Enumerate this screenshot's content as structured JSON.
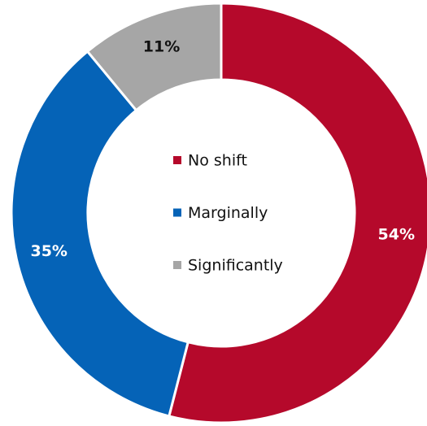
{
  "chart_data": {
    "type": "donut",
    "categories": [
      "No shift",
      "Marginally",
      "Significantly"
    ],
    "values": [
      54,
      35,
      11
    ],
    "value_labels": [
      "54%",
      "35%",
      "11%"
    ],
    "colors": [
      "#b5092b",
      "#0563b7",
      "#a6a6a6"
    ],
    "label_colors": [
      "#ffffff",
      "#ffffff",
      "#111111"
    ],
    "legend": "center"
  }
}
